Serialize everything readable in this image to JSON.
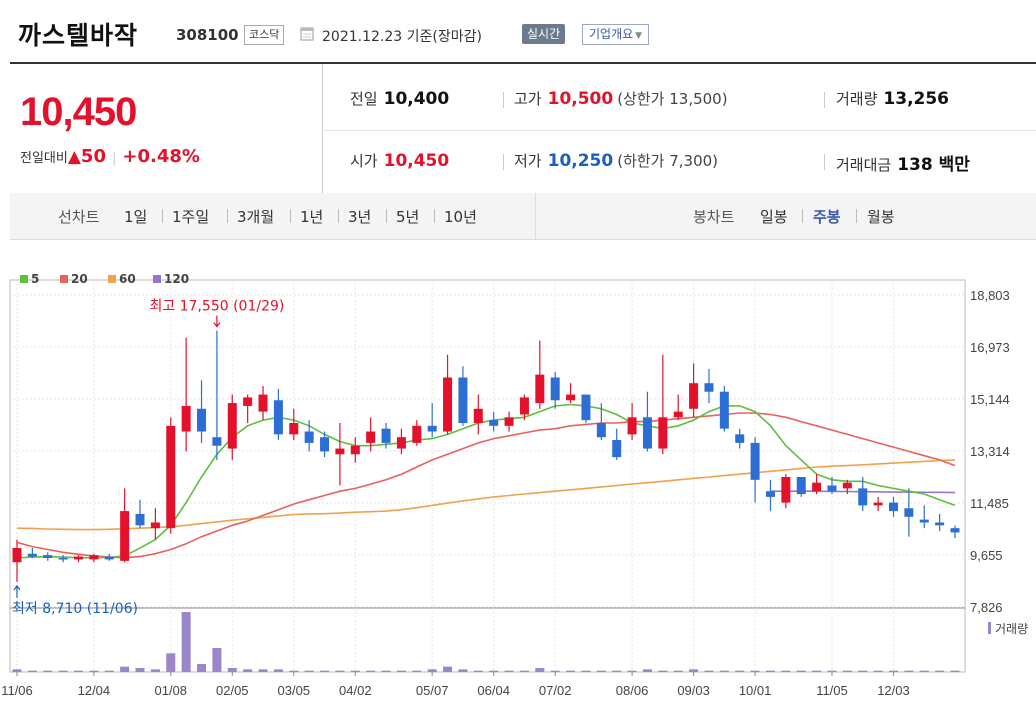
{
  "header": {
    "name": "까스텔바작",
    "code": "308100",
    "market": "코스닥",
    "date": "2021.12.23",
    "basis": "기준(장마감)",
    "realtime_label": "실시간",
    "company_label": "기업개요"
  },
  "summary": {
    "price": "10,450",
    "change_label": "전일대비",
    "change": "50",
    "change_rate": "+0.48%",
    "prev": {
      "label": "전일",
      "value": "10,400"
    },
    "open": {
      "label": "시가",
      "value": "10,450"
    },
    "high": {
      "label": "고가",
      "value": "10,500",
      "limit_label": "(상한가 13,500)"
    },
    "low": {
      "label": "저가",
      "value": "10,250",
      "limit_label": "(하한가 7,300)"
    },
    "volume": {
      "label": "거래량",
      "value": "13,256"
    },
    "amount": {
      "label": "거래대금",
      "value": "138 백만"
    }
  },
  "periods": {
    "label": "선차트",
    "options": [
      "1일",
      "1주일",
      "3개월",
      "1년",
      "3년",
      "5년",
      "10년"
    ]
  },
  "candle_types": {
    "label": "봉차트",
    "options": [
      "일봉",
      "주봉",
      "월봉"
    ],
    "selected": "주봉"
  },
  "colors": {
    "up": "#e3112b",
    "down": "#2d6ed4",
    "ma5": "#5cbf3f",
    "ma20": "#e8615c",
    "ma60": "#f0a24a",
    "ma120": "#9b73d1",
    "volume": "#9b86c9"
  },
  "chart_data": {
    "type": "candlestick",
    "legend": [
      "5",
      "20",
      "60",
      "120"
    ],
    "y_ticks": [
      "18,803",
      "16,973",
      "15,144",
      "13,314",
      "11,485",
      "9,655",
      "7,826"
    ],
    "ylim": [
      7826,
      18803
    ],
    "x_ticks": [
      "11/06",
      "12/04",
      "01/08",
      "02/05",
      "03/05",
      "04/02",
      "05/07",
      "06/04",
      "07/02",
      "08/06",
      "09/03",
      "10/01",
      "11/05",
      "12/03"
    ],
    "max_annotation": "최고 17,550 (01/29)",
    "min_annotation": "최저 8,710 (11/06)",
    "volume_label": "거래량",
    "candles": [
      {
        "o": 9400,
        "h": 10200,
        "l": 8710,
        "c": 9900
      },
      {
        "o": 9700,
        "h": 9900,
        "l": 9550,
        "c": 9600
      },
      {
        "o": 9650,
        "h": 9750,
        "l": 9450,
        "c": 9550
      },
      {
        "o": 9550,
        "h": 9650,
        "l": 9400,
        "c": 9500
      },
      {
        "o": 9500,
        "h": 9650,
        "l": 9400,
        "c": 9600
      },
      {
        "o": 9500,
        "h": 9700,
        "l": 9400,
        "c": 9650
      },
      {
        "o": 9600,
        "h": 9700,
        "l": 9450,
        "c": 9500
      },
      {
        "o": 9450,
        "h": 12000,
        "l": 9400,
        "c": 11200
      },
      {
        "o": 11100,
        "h": 11600,
        "l": 10600,
        "c": 10700
      },
      {
        "o": 10600,
        "h": 11300,
        "l": 10200,
        "c": 10800
      },
      {
        "o": 10600,
        "h": 14500,
        "l": 10400,
        "c": 14200
      },
      {
        "o": 14000,
        "h": 17300,
        "l": 13300,
        "c": 14900
      },
      {
        "o": 14800,
        "h": 15800,
        "l": 13600,
        "c": 14000
      },
      {
        "o": 13800,
        "h": 17550,
        "l": 13000,
        "c": 13500
      },
      {
        "o": 13400,
        "h": 15300,
        "l": 13000,
        "c": 15000
      },
      {
        "o": 14900,
        "h": 15300,
        "l": 14300,
        "c": 15200
      },
      {
        "o": 14700,
        "h": 15600,
        "l": 14400,
        "c": 15300
      },
      {
        "o": 15100,
        "h": 15500,
        "l": 13700,
        "c": 13900
      },
      {
        "o": 13900,
        "h": 14800,
        "l": 13700,
        "c": 14300
      },
      {
        "o": 14000,
        "h": 14400,
        "l": 13300,
        "c": 13600
      },
      {
        "o": 13800,
        "h": 14000,
        "l": 13100,
        "c": 13300
      },
      {
        "o": 13200,
        "h": 14300,
        "l": 12100,
        "c": 13400
      },
      {
        "o": 13200,
        "h": 13800,
        "l": 12900,
        "c": 13500
      },
      {
        "o": 13600,
        "h": 14500,
        "l": 13300,
        "c": 14000
      },
      {
        "o": 14100,
        "h": 14300,
        "l": 13400,
        "c": 13600
      },
      {
        "o": 13400,
        "h": 14100,
        "l": 13200,
        "c": 13800
      },
      {
        "o": 13600,
        "h": 14400,
        "l": 13500,
        "c": 14200
      },
      {
        "o": 14200,
        "h": 15000,
        "l": 13800,
        "c": 14000
      },
      {
        "o": 14000,
        "h": 16700,
        "l": 13900,
        "c": 15900
      },
      {
        "o": 15900,
        "h": 16300,
        "l": 14200,
        "c": 14300
      },
      {
        "o": 14300,
        "h": 15300,
        "l": 13900,
        "c": 14800
      },
      {
        "o": 14400,
        "h": 14700,
        "l": 14000,
        "c": 14200
      },
      {
        "o": 14200,
        "h": 14700,
        "l": 14000,
        "c": 14500
      },
      {
        "o": 14600,
        "h": 15300,
        "l": 14400,
        "c": 15200
      },
      {
        "o": 15000,
        "h": 17200,
        "l": 14800,
        "c": 16000
      },
      {
        "o": 15900,
        "h": 16100,
        "l": 14800,
        "c": 15100
      },
      {
        "o": 15100,
        "h": 15700,
        "l": 15000,
        "c": 15300
      },
      {
        "o": 15300,
        "h": 15300,
        "l": 14300,
        "c": 14400
      },
      {
        "o": 14300,
        "h": 15000,
        "l": 13700,
        "c": 13800
      },
      {
        "o": 13700,
        "h": 14100,
        "l": 13000,
        "c": 13100
      },
      {
        "o": 13900,
        "h": 15000,
        "l": 13700,
        "c": 14500
      },
      {
        "o": 14500,
        "h": 15400,
        "l": 13300,
        "c": 13400
      },
      {
        "o": 13400,
        "h": 16700,
        "l": 13200,
        "c": 14500
      },
      {
        "o": 14500,
        "h": 15300,
        "l": 14400,
        "c": 14700
      },
      {
        "o": 14800,
        "h": 16400,
        "l": 14500,
        "c": 15700
      },
      {
        "o": 15700,
        "h": 16200,
        "l": 15000,
        "c": 15400
      },
      {
        "o": 15400,
        "h": 15600,
        "l": 14000,
        "c": 14100
      },
      {
        "o": 13900,
        "h": 14100,
        "l": 13400,
        "c": 13600
      },
      {
        "o": 13600,
        "h": 13800,
        "l": 11500,
        "c": 12300
      },
      {
        "o": 11900,
        "h": 12300,
        "l": 11200,
        "c": 11700
      },
      {
        "o": 11500,
        "h": 12500,
        "l": 11300,
        "c": 12400
      },
      {
        "o": 12400,
        "h": 12400,
        "l": 11700,
        "c": 11800
      },
      {
        "o": 11900,
        "h": 12500,
        "l": 11800,
        "c": 12200
      },
      {
        "o": 12100,
        "h": 12400,
        "l": 11800,
        "c": 11900
      },
      {
        "o": 12000,
        "h": 12300,
        "l": 11800,
        "c": 12200
      },
      {
        "o": 12000,
        "h": 12400,
        "l": 11200,
        "c": 11400
      },
      {
        "o": 11400,
        "h": 11700,
        "l": 11200,
        "c": 11500
      },
      {
        "o": 11500,
        "h": 11700,
        "l": 11000,
        "c": 11200
      },
      {
        "o": 11300,
        "h": 12000,
        "l": 10300,
        "c": 11000
      },
      {
        "o": 10900,
        "h": 11400,
        "l": 10600,
        "c": 10800
      },
      {
        "o": 10800,
        "h": 11100,
        "l": 10500,
        "c": 10700
      },
      {
        "o": 10600,
        "h": 10700,
        "l": 10250,
        "c": 10450
      }
    ],
    "volume": [
      2,
      1,
      1,
      1,
      1,
      1,
      1,
      4,
      3,
      2,
      14,
      45,
      6,
      18,
      3,
      2,
      2,
      2,
      1,
      1,
      1,
      1,
      1,
      1,
      1,
      1,
      1,
      2,
      4,
      2,
      1,
      1,
      1,
      1,
      3,
      1,
      1,
      1,
      1,
      1,
      1,
      2,
      1,
      1,
      2,
      1,
      1,
      1,
      1,
      1,
      1,
      1,
      1,
      1,
      1,
      1,
      1,
      1,
      1,
      1,
      1,
      1
    ],
    "ma5": [
      9550,
      9580,
      9600,
      9580,
      9560,
      9560,
      9570,
      9620,
      9900,
      10200,
      10700,
      11500,
      12400,
      13200,
      13800,
      14200,
      14400,
      14500,
      14400,
      14200,
      13900,
      13650,
      13500,
      13500,
      13550,
      13600,
      13700,
      13750,
      13900,
      14100,
      14300,
      14400,
      14450,
      14500,
      14700,
      14900,
      14950,
      14900,
      14800,
      14600,
      14300,
      14200,
      14100,
      14200,
      14400,
      14700,
      14900,
      14900,
      14700,
      14200,
      13500,
      13000,
      12500,
      12300,
      12250,
      12250,
      12100,
      12000,
      11900,
      11800,
      11600,
      11400
    ],
    "ma20": [
      10100,
      9950,
      9850,
      9750,
      9680,
      9620,
      9580,
      9560,
      9600,
      9700,
      9850,
      10050,
      10300,
      10500,
      10700,
      10850,
      11050,
      11250,
      11450,
      11600,
      11750,
      11900,
      12000,
      12150,
      12300,
      12500,
      12750,
      13000,
      13200,
      13400,
      13600,
      13750,
      13850,
      13950,
      14050,
      14100,
      14200,
      14250,
      14300,
      14300,
      14350,
      14350,
      14400,
      14450,
      14500,
      14550,
      14600,
      14650,
      14650,
      14600,
      14500,
      14350,
      14200,
      14050,
      13900,
      13750,
      13600,
      13450,
      13300,
      13150,
      13000,
      12800
    ],
    "ma60": [
      10600,
      10590,
      10570,
      10560,
      10550,
      10550,
      10560,
      10580,
      10600,
      10620,
      10650,
      10700,
      10760,
      10820,
      10880,
      10930,
      10980,
      11030,
      11080,
      11100,
      11110,
      11130,
      11160,
      11180,
      11200,
      11250,
      11320,
      11400,
      11480,
      11560,
      11630,
      11700,
      11750,
      11800,
      11850,
      11900,
      11950,
      12000,
      12050,
      12100,
      12150,
      12200,
      12250,
      12300,
      12350,
      12400,
      12450,
      12500,
      12550,
      12600,
      12650,
      12700,
      12750,
      12780,
      12800,
      12830,
      12860,
      12890,
      12920,
      12950,
      12980,
      13000
    ],
    "ma120": [
      null,
      null,
      null,
      null,
      null,
      null,
      null,
      null,
      null,
      null,
      null,
      null,
      null,
      null,
      null,
      null,
      null,
      null,
      null,
      null,
      null,
      null,
      null,
      null,
      null,
      null,
      null,
      null,
      null,
      null,
      null,
      null,
      null,
      null,
      null,
      null,
      null,
      null,
      null,
      null,
      null,
      null,
      null,
      null,
      null,
      null,
      null,
      null,
      null,
      11900,
      11900,
      11900,
      11900,
      11890,
      11890,
      11880,
      11880,
      11870,
      11870,
      11860,
      11860,
      11850
    ]
  }
}
